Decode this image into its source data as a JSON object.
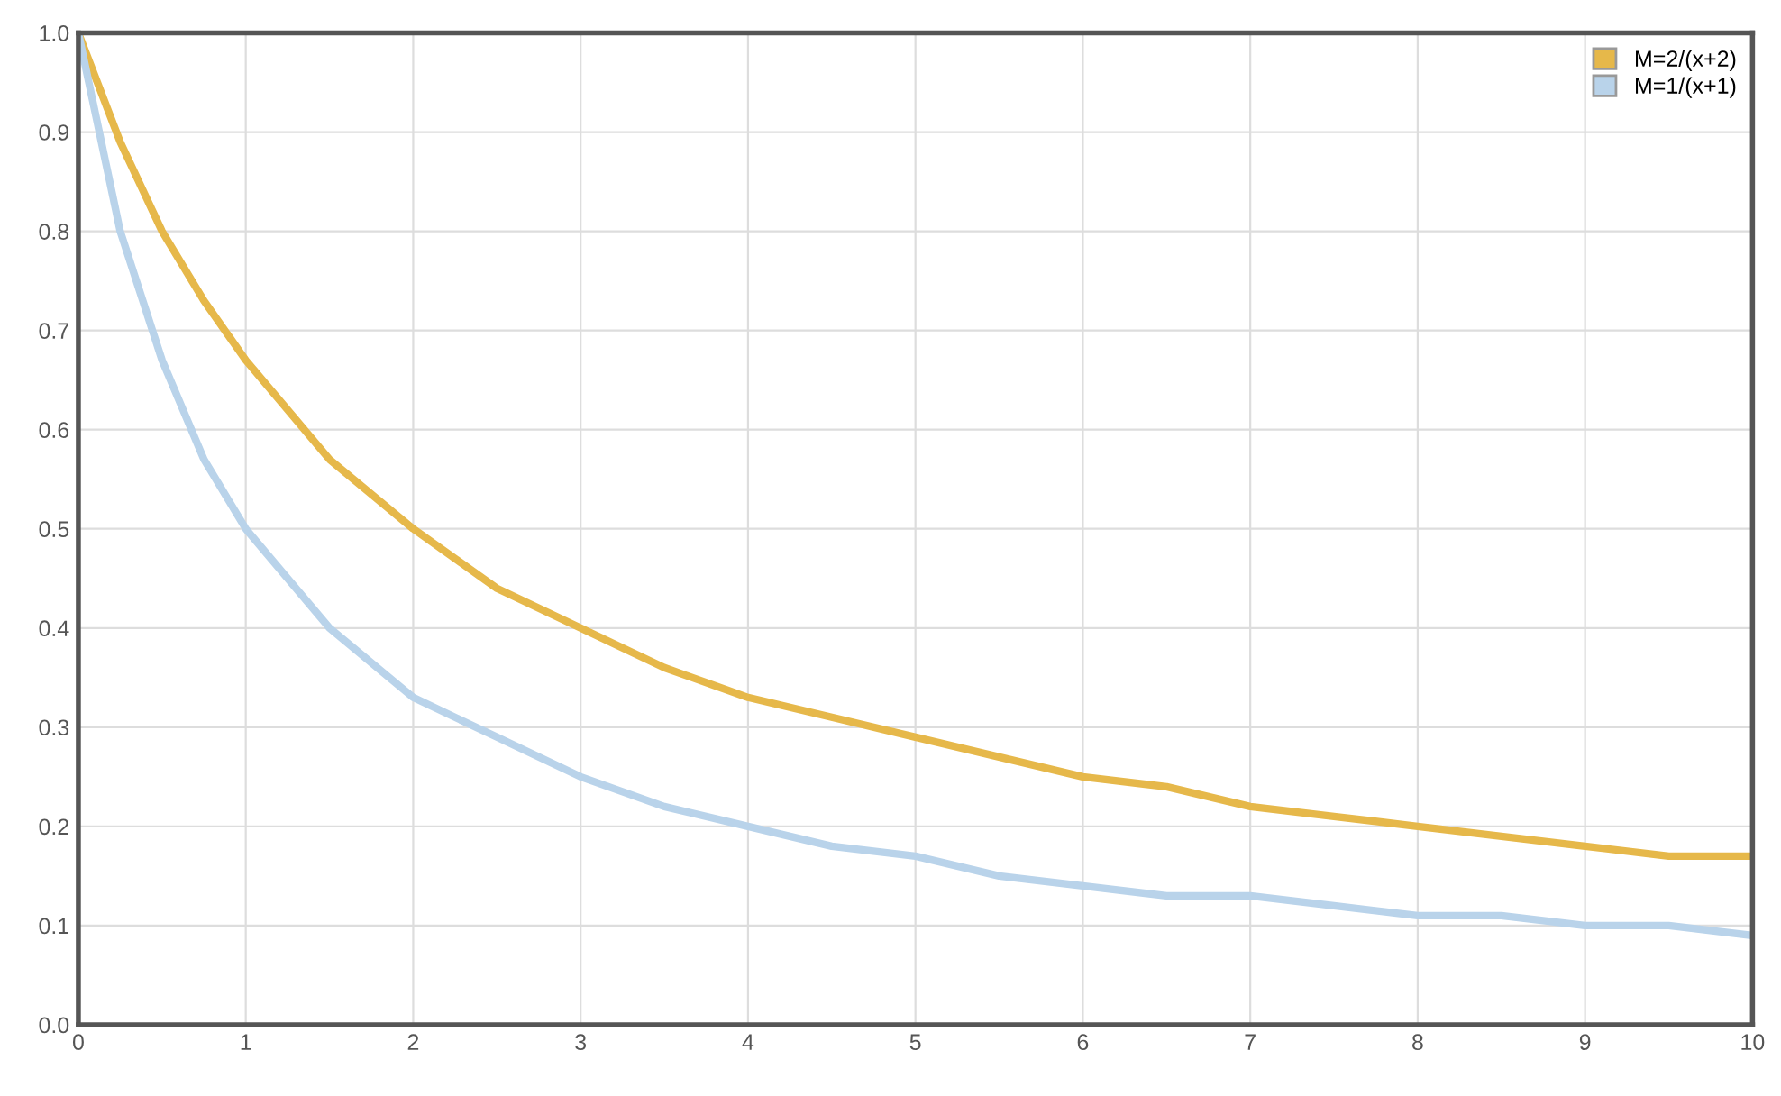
{
  "chart_data": {
    "type": "line",
    "series": [
      {
        "name": "M=2/(x+2)",
        "color": "#e6b84a",
        "x": [
          0,
          0.25,
          0.5,
          0.75,
          1,
          1.5,
          2,
          2.5,
          3,
          3.5,
          4,
          4.5,
          5,
          5.5,
          6,
          6.5,
          7,
          7.5,
          8,
          8.5,
          9,
          9.5,
          10
        ],
        "values": [
          1.0,
          0.89,
          0.8,
          0.73,
          0.67,
          0.57,
          0.5,
          0.44,
          0.4,
          0.36,
          0.33,
          0.31,
          0.29,
          0.27,
          0.25,
          0.24,
          0.22,
          0.21,
          0.2,
          0.19,
          0.18,
          0.17,
          0.17
        ]
      },
      {
        "name": "M=1/(x+1)",
        "color": "#b9d3ea",
        "x": [
          0,
          0.25,
          0.5,
          0.75,
          1,
          1.5,
          2,
          2.5,
          3,
          3.5,
          4,
          4.5,
          5,
          5.5,
          6,
          6.5,
          7,
          7.5,
          8,
          8.5,
          9,
          9.5,
          10
        ],
        "values": [
          1.0,
          0.8,
          0.67,
          0.57,
          0.5,
          0.4,
          0.33,
          0.29,
          0.25,
          0.22,
          0.2,
          0.18,
          0.17,
          0.15,
          0.14,
          0.13,
          0.13,
          0.12,
          0.11,
          0.11,
          0.1,
          0.1,
          0.09
        ]
      }
    ],
    "xlim": [
      0,
      10
    ],
    "xticks": [
      0,
      1,
      2,
      3,
      4,
      5,
      6,
      7,
      8,
      9,
      10
    ],
    "ylim": [
      0,
      1
    ],
    "yticks": [
      {
        "value": 0,
        "label": "0.0"
      },
      0.1,
      0.2,
      0.3,
      0.4,
      0.5,
      0.6,
      0.7,
      0.8,
      0.9,
      {
        "value": 1,
        "label": "1.0"
      }
    ],
    "grid": true,
    "legend": "top right",
    "marker": "none",
    "line_style": "solid"
  }
}
